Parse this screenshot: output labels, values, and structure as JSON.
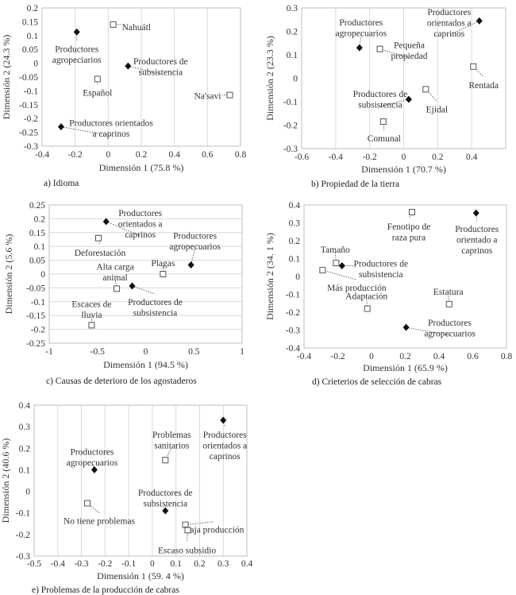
{
  "chart_data": [
    {
      "id": "a",
      "type": "scatter",
      "caption": "a) Idioma",
      "xlabel": "Dimensión 1 (75.8 %)",
      "ylabel": "Dimensión 2 (24.3 %)",
      "xlim": [
        -0.4,
        0.8
      ],
      "ylim": [
        -0.3,
        0.2
      ],
      "xticks": [
        -0.4,
        -0.2,
        0,
        0.2,
        0.4,
        0.6,
        0.8
      ],
      "yticks": [
        0.2,
        0.15,
        0.1,
        0.05,
        0,
        -0.05,
        -0.1,
        -0.15,
        -0.2,
        -0.25,
        -0.3
      ],
      "grid": "vertical",
      "points": [
        {
          "label": [
            "Nahuátl"
          ],
          "x": 0.03,
          "y": 0.14,
          "kind": "category"
        },
        {
          "label": [
            "Productores",
            "agropeciarios"
          ],
          "x": -0.19,
          "y": 0.113,
          "kind": "producer"
        },
        {
          "label": [
            "Productores de",
            "subsistencia"
          ],
          "x": 0.12,
          "y": -0.01,
          "kind": "producer"
        },
        {
          "label": [
            "Español"
          ],
          "x": -0.065,
          "y": -0.057,
          "kind": "category"
        },
        {
          "label": [
            "Na'savi"
          ],
          "x": 0.735,
          "y": -0.115,
          "kind": "category"
        },
        {
          "label": [
            "Productores orientados",
            "a caprinos"
          ],
          "x": -0.285,
          "y": -0.23,
          "kind": "producer"
        }
      ]
    },
    {
      "id": "b",
      "type": "scatter",
      "caption": "b) Propiedad de la tierra",
      "xlabel": "Dimensión 1 (70.7 %)",
      "ylabel": "Dimensión 2 (23.3 %)",
      "xlim": [
        -0.6,
        0.6
      ],
      "ylim": [
        -0.3,
        0.3
      ],
      "xticks": [
        -0.6,
        -0.4,
        -0.2,
        0,
        0.2,
        0.4
      ],
      "yticks": [
        0.3,
        0.2,
        0.1,
        0,
        -0.1,
        -0.2,
        -0.3
      ],
      "grid": "vertical",
      "points": [
        {
          "label": [
            "Productores",
            "agropecuarios"
          ],
          "x": -0.26,
          "y": 0.13,
          "kind": "producer"
        },
        {
          "label": [
            "Pequeña",
            "propiedad"
          ],
          "x": -0.14,
          "y": 0.125,
          "kind": "category"
        },
        {
          "label": [
            "Productores",
            "orientados a",
            "caprinos"
          ],
          "x": 0.445,
          "y": 0.245,
          "kind": "producer"
        },
        {
          "label": [
            "Rentada"
          ],
          "x": 0.41,
          "y": 0.05,
          "kind": "category"
        },
        {
          "label": [
            "Productores de",
            "subsistencia"
          ],
          "x": 0.03,
          "y": -0.09,
          "kind": "producer"
        },
        {
          "label": [
            "Ejidal"
          ],
          "x": 0.13,
          "y": -0.047,
          "kind": "category"
        },
        {
          "label": [
            "Comunal"
          ],
          "x": -0.12,
          "y": -0.185,
          "kind": "category"
        }
      ]
    },
    {
      "id": "c",
      "type": "scatter",
      "caption": "c) Causas de deterioro de los agostaderos",
      "xlabel": "Dimensión 1 (94.5 %)",
      "ylabel": "Dimensión 2 (5.6 %)",
      "xlim": [
        -1,
        1
      ],
      "ylim": [
        -0.25,
        0.25
      ],
      "xticks": [
        -1,
        -0.5,
        0,
        0.5,
        1
      ],
      "yticks": [
        0.25,
        0.2,
        0.15,
        0.1,
        0.05,
        0,
        -0.05,
        -0.1,
        -0.15,
        -0.2,
        -0.25
      ],
      "grid": "horizontal",
      "points": [
        {
          "label": [
            "Productores",
            "orientados a",
            "caprinos"
          ],
          "x": -0.41,
          "y": 0.19,
          "kind": "producer"
        },
        {
          "label": [
            "Deforestación"
          ],
          "x": -0.49,
          "y": 0.13,
          "kind": "category"
        },
        {
          "label": [
            "Productores",
            "agropecuarios"
          ],
          "x": 0.47,
          "y": 0.033,
          "kind": "producer"
        },
        {
          "label": [
            "Plagas"
          ],
          "x": 0.18,
          "y": 0,
          "kind": "category"
        },
        {
          "label": [
            "Alta carga",
            "animal"
          ],
          "x": -0.3,
          "y": -0.053,
          "kind": "category"
        },
        {
          "label": [
            "Productores de",
            "subsistencia"
          ],
          "x": -0.14,
          "y": -0.043,
          "kind": "producer"
        },
        {
          "label": [
            "Escaces de",
            "lluvia"
          ],
          "x": -0.56,
          "y": -0.185,
          "kind": "category"
        }
      ]
    },
    {
      "id": "d",
      "type": "scatter",
      "caption": "d) Crieterios de selección de cabras",
      "xlabel": "Dimensión 1 (65.9 %)",
      "ylabel": "Dimensión 2 (34. 1 %)",
      "xlim": [
        -0.4,
        0.8
      ],
      "ylim": [
        -0.4,
        0.4
      ],
      "xticks": [
        -0.4,
        -0.2,
        0,
        0.2,
        0.4,
        0.6,
        0.8
      ],
      "yticks": [
        0.4,
        0.3,
        0.2,
        0.1,
        0,
        -0.1,
        -0.2,
        -0.3,
        -0.4
      ],
      "grid": "none",
      "points": [
        {
          "label": [
            "Fenotipo de",
            "raza pura"
          ],
          "x": 0.24,
          "y": 0.36,
          "kind": "category"
        },
        {
          "label": [
            "Productores",
            "orientado a",
            "caprinos"
          ],
          "x": 0.62,
          "y": 0.355,
          "kind": "producer"
        },
        {
          "label": [
            "Tamaño"
          ],
          "x": -0.21,
          "y": 0.075,
          "kind": "category"
        },
        {
          "label": [
            "Productores de",
            "subsistencia"
          ],
          "x": -0.175,
          "y": 0.06,
          "kind": "producer"
        },
        {
          "label": [
            "Más producción"
          ],
          "x": -0.29,
          "y": 0.035,
          "kind": "category"
        },
        {
          "label": [
            "Adaptación"
          ],
          "x": -0.025,
          "y": -0.18,
          "kind": "category"
        },
        {
          "label": [
            "Estatura"
          ],
          "x": 0.46,
          "y": -0.155,
          "kind": "category"
        },
        {
          "label": [
            "Productores",
            "agropecuarios"
          ],
          "x": 0.205,
          "y": -0.285,
          "kind": "producer"
        }
      ]
    },
    {
      "id": "e",
      "type": "scatter",
      "caption": "e) Problemas de la producción de cabras",
      "xlabel": "Dimensión 1 (59. 4 %)",
      "ylabel": "Dimensión 2 (40.6 %)",
      "xlim": [
        -0.5,
        0.4
      ],
      "ylim": [
        -0.3,
        0.4
      ],
      "xticks": [
        -0.5,
        -0.4,
        -0.3,
        -0.2,
        -0.1,
        0,
        0.1,
        0.2,
        0.3,
        0.4
      ],
      "yticks": [
        0.4,
        0.3,
        0.2,
        0.1,
        0,
        -0.1,
        -0.2,
        -0.3
      ],
      "grid": "vertical",
      "points": [
        {
          "label": [
            "Productores",
            "orientados a",
            "caprinos"
          ],
          "x": 0.3,
          "y": 0.33,
          "kind": "producer"
        },
        {
          "label": [
            "Problemas",
            "sanitarios"
          ],
          "x": 0.055,
          "y": 0.145,
          "kind": "category"
        },
        {
          "label": [
            "Productores",
            "agropecuarios"
          ],
          "x": -0.245,
          "y": 0.1,
          "kind": "producer"
        },
        {
          "label": [
            "No tiene problemas"
          ],
          "x": -0.275,
          "y": -0.055,
          "kind": "category"
        },
        {
          "label": [
            "Productores de",
            "subsistencia"
          ],
          "x": 0.055,
          "y": -0.09,
          "kind": "producer"
        },
        {
          "label": [
            "Baja producción"
          ],
          "x": 0.14,
          "y": -0.155,
          "kind": "category"
        },
        {
          "label": [
            "Escaso subsidio"
          ],
          "x": 0.15,
          "y": -0.18,
          "kind": "category"
        }
      ]
    }
  ]
}
